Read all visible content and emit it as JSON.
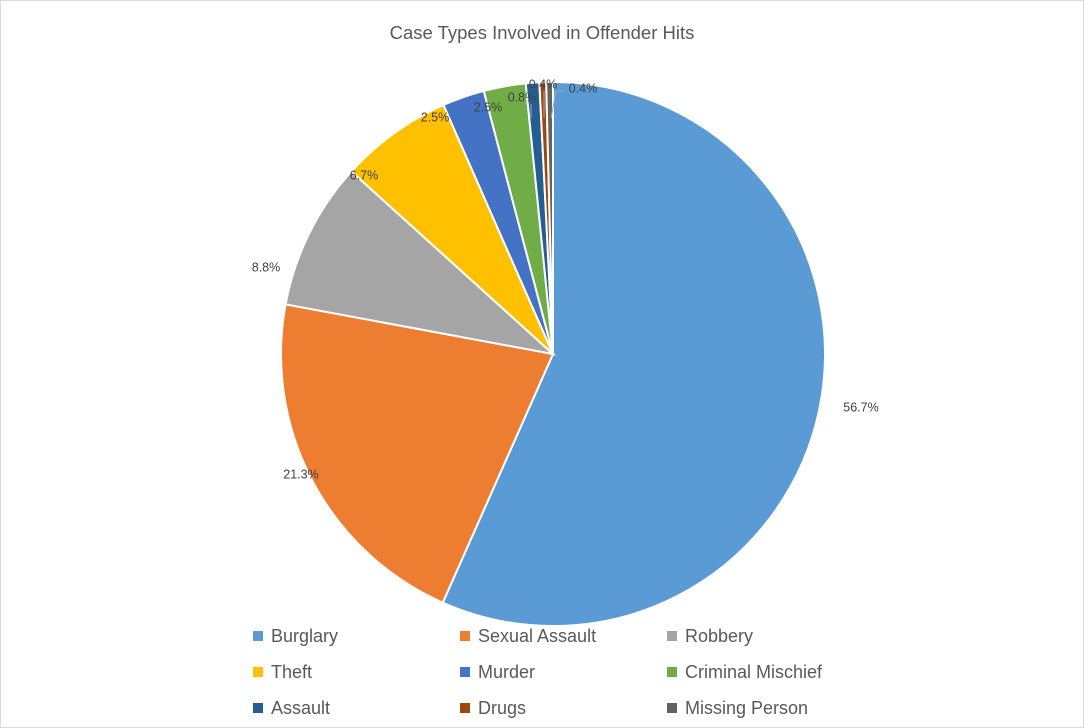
{
  "chart_data": {
    "type": "pie",
    "title": "Case Types Involved in Offender Hits",
    "legend_position": "bottom",
    "slices": [
      {
        "name": "Burglary",
        "value": 56.7,
        "label": "56.7%",
        "color": "#5B9BD5"
      },
      {
        "name": "Sexual Assault",
        "value": 21.3,
        "label": "21.3%",
        "color": "#ED7D31"
      },
      {
        "name": "Robbery",
        "value": 8.8,
        "label": "8.8%",
        "color": "#A5A5A5"
      },
      {
        "name": "Theft",
        "value": 6.7,
        "label": "6.7%",
        "color": "#FFC000"
      },
      {
        "name": "Murder",
        "value": 2.5,
        "label": "2.5%",
        "color": "#4472C4"
      },
      {
        "name": "Criminal Mischief",
        "value": 2.5,
        "label": "2.5%",
        "color": "#70AD47"
      },
      {
        "name": "Assault",
        "value": 0.8,
        "label": "0.8%",
        "color": "#255E91"
      },
      {
        "name": "Drugs",
        "value": 0.4,
        "label": "0.4%",
        "color": "#9E480E"
      },
      {
        "name": "Missing Person",
        "value": 0.4,
        "label": "0.4%",
        "color": "#636363"
      }
    ]
  }
}
